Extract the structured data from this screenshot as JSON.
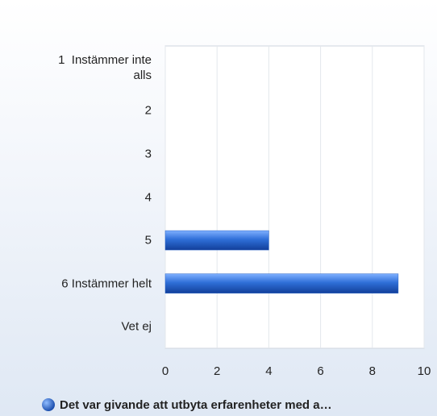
{
  "chart_data": {
    "type": "barh",
    "categories": [
      "1  Instämmer inte alls",
      "2",
      "3",
      "4",
      "5",
      "6 Instämmer helt",
      "Vet ej"
    ],
    "series": [
      {
        "name": "Det var givande att utbyta erfarenheter med a…",
        "color": "#2360c4",
        "values": [
          0,
          0,
          0,
          0,
          4,
          9,
          0
        ]
      }
    ],
    "xlim": [
      0,
      10
    ],
    "xticks": [
      0,
      2,
      4,
      6,
      8,
      10
    ],
    "grid": true
  }
}
